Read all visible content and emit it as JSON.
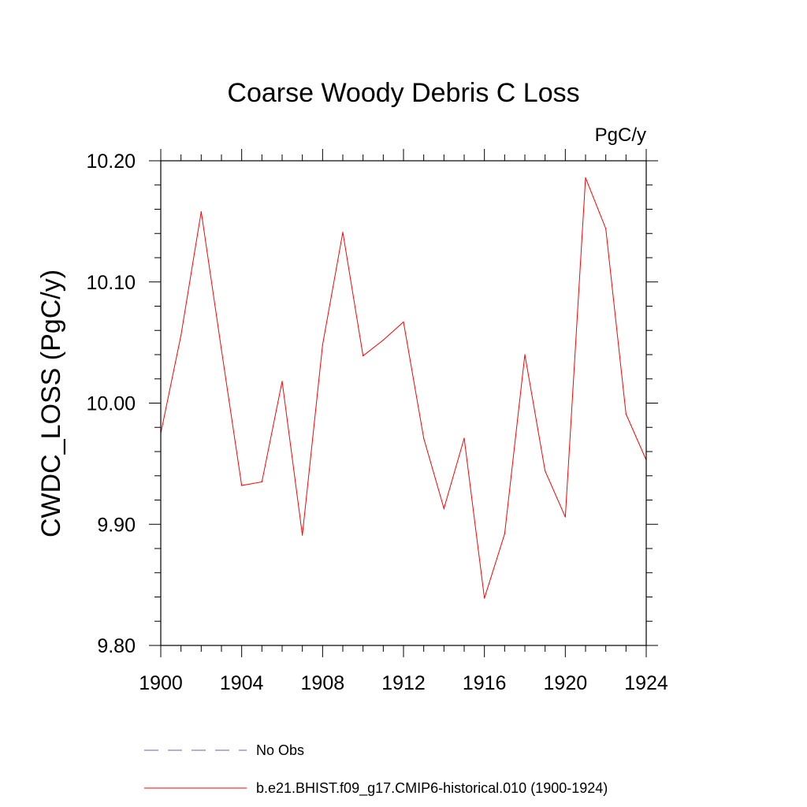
{
  "chart_data": {
    "type": "line",
    "title": "Coarse Woody Debris C Loss",
    "units": "PgC/y",
    "ylabel": "CWDC_LOSS  (PgC/y)",
    "xlabel": "",
    "xlim": [
      1900,
      1924
    ],
    "ylim": [
      9.8,
      10.2
    ],
    "x_ticks": [
      1900,
      1904,
      1908,
      1912,
      1916,
      1920,
      1924
    ],
    "x_tick_labels": [
      "1900",
      "1904",
      "1908",
      "1912",
      "1916",
      "1920",
      "1924"
    ],
    "y_ticks": [
      9.8,
      9.9,
      10.0,
      10.1,
      10.2
    ],
    "y_tick_labels": [
      "9.80",
      "9.90",
      "10.00",
      "10.10",
      "10.20"
    ],
    "y_minor_step": 0.02,
    "x_minor_step": 1,
    "grid": false,
    "legend_position": "bottom-left",
    "series": [
      {
        "name": "b.e21.BHIST.f09_g17.CMIP6-historical.010 (1900-1924)",
        "color": "#ff0000",
        "style": "solid",
        "x": [
          1900,
          1901,
          1902,
          1903,
          1904,
          1905,
          1906,
          1907,
          1908,
          1909,
          1910,
          1911,
          1912,
          1913,
          1914,
          1915,
          1916,
          1917,
          1918,
          1919,
          1920,
          1921,
          1922,
          1923,
          1924
        ],
        "values": [
          9.975,
          10.056,
          10.158,
          10.044,
          9.932,
          9.935,
          10.018,
          9.891,
          10.048,
          10.141,
          10.039,
          10.052,
          10.067,
          9.971,
          9.913,
          9.971,
          9.839,
          9.892,
          10.04,
          9.944,
          9.906,
          10.186,
          10.144,
          9.991,
          9.953
        ]
      }
    ],
    "legend": [
      {
        "label": "No Obs",
        "color": "#6666aa",
        "style": "dashed"
      },
      {
        "label": "b.e21.BHIST.f09_g17.CMIP6-historical.010 (1900-1924)",
        "color": "#ff0000",
        "style": "solid"
      }
    ]
  }
}
